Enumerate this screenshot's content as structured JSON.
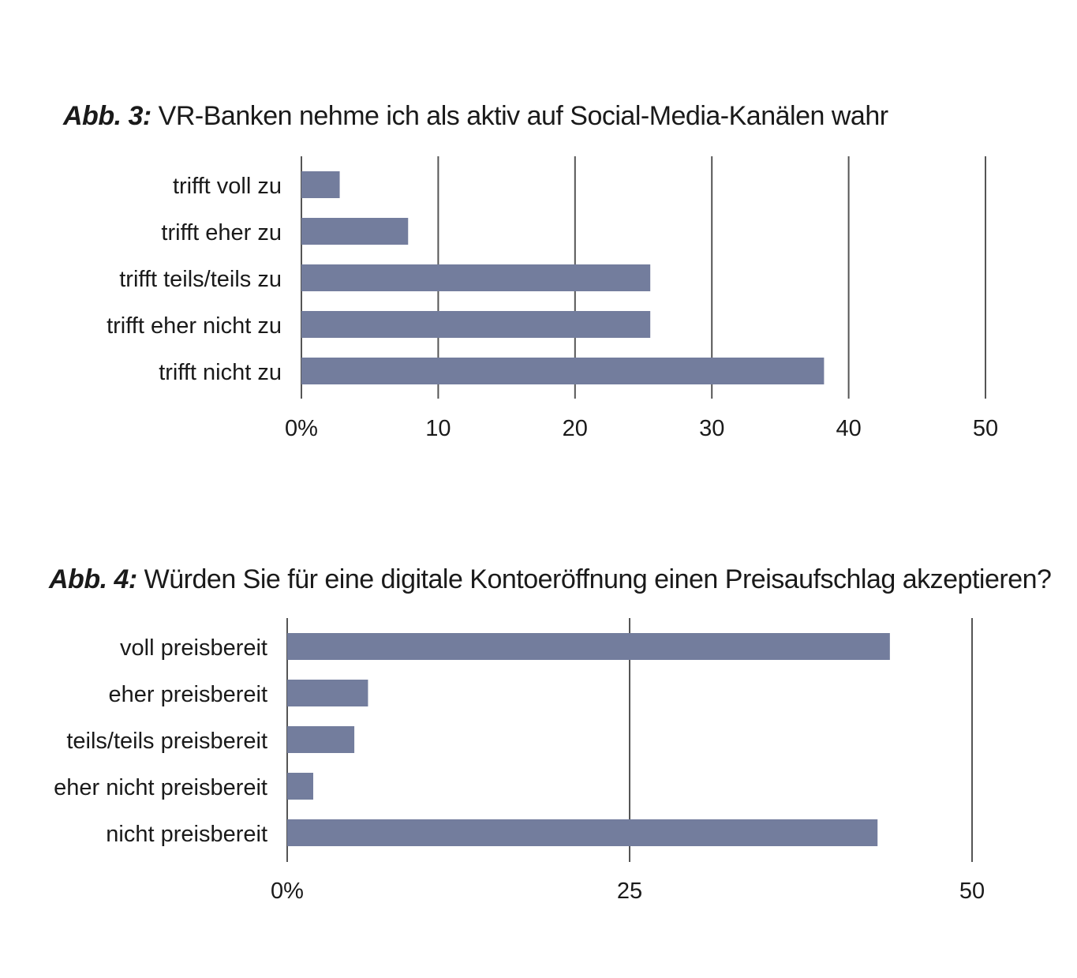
{
  "chart_data": [
    {
      "type": "bar",
      "orientation": "horizontal",
      "figure_label": "Abb. 3:",
      "title": "VR-Banken nehme ich als aktiv auf Social-Media-Kanälen wahr",
      "categories": [
        "trifft voll zu",
        "trifft eher zu",
        "trifft teils/teils zu",
        "trifft eher nicht zu",
        "trifft nicht zu"
      ],
      "values": [
        2.8,
        7.8,
        25.5,
        25.5,
        38.2
      ],
      "ticks": [
        0,
        10,
        20,
        30,
        40,
        50
      ],
      "tick_labels": [
        "0%",
        "10",
        "20",
        "30",
        "40",
        "50"
      ],
      "xlim": [
        0,
        50
      ],
      "grid": true,
      "bar_color": "#737d9d"
    },
    {
      "type": "bar",
      "orientation": "horizontal",
      "figure_label": "Abb. 4:",
      "title": "Würden Sie für eine digitale Kontoeröffnung einen Preisaufschlag akzeptieren?",
      "categories": [
        "voll preisbereit",
        "eher preisbereit",
        "teils/teils preisbereit",
        "eher nicht preisbereit",
        "nicht preisbereit"
      ],
      "values": [
        44.0,
        5.9,
        4.9,
        1.9,
        43.1
      ],
      "ticks": [
        0,
        25,
        50
      ],
      "tick_labels": [
        "0%",
        "25",
        "50"
      ],
      "xlim": [
        0,
        50
      ],
      "grid": true,
      "bar_color": "#737d9d"
    }
  ]
}
